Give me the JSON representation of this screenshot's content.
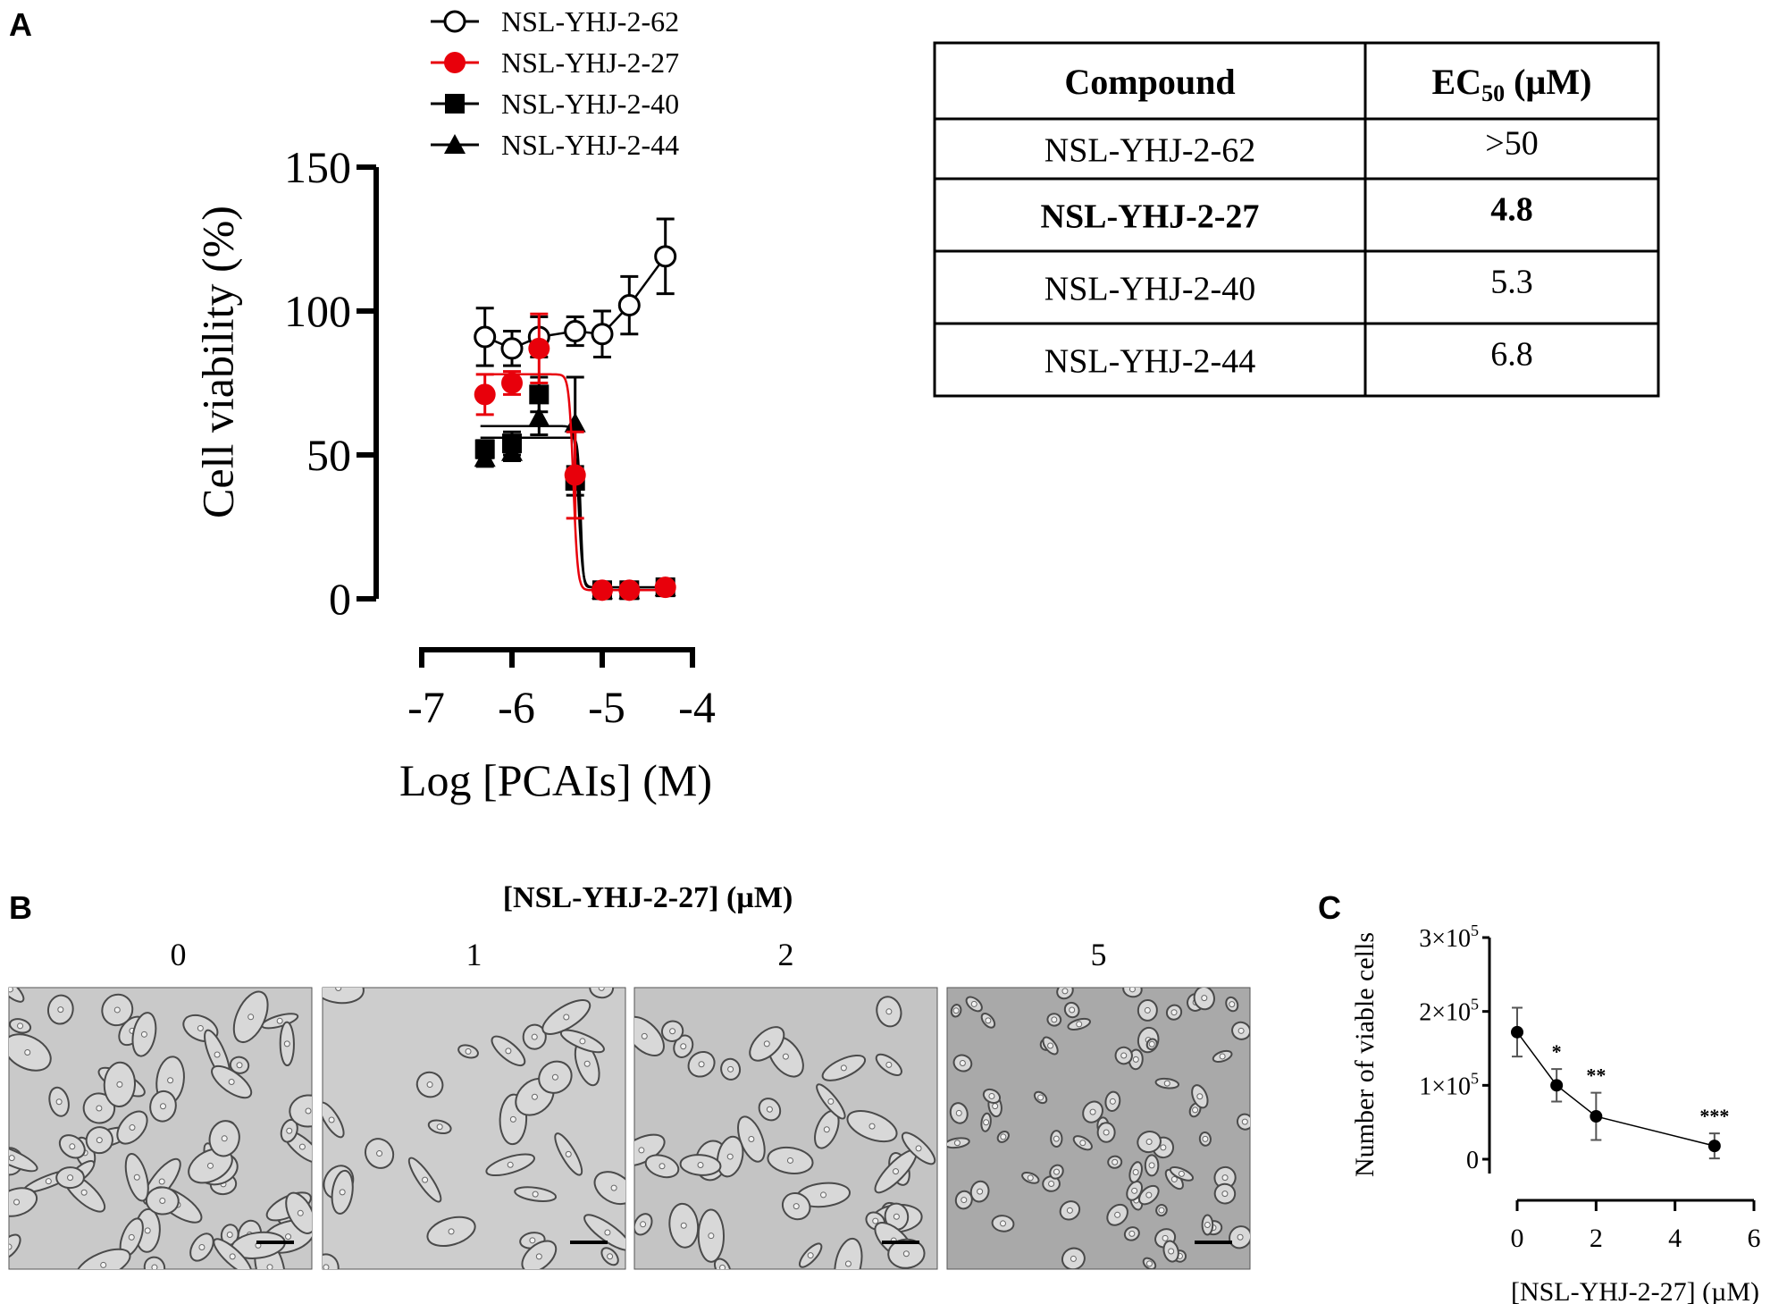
{
  "panel_labels": {
    "a": "A",
    "b": "B",
    "c": "C"
  },
  "chart_data": [
    {
      "type": "scatter",
      "panel": "A",
      "xlabel": "Log [PCAIs] (M)",
      "ylabel": "Cell viability (%)",
      "xlim": [
        -7,
        -4
      ],
      "ylim": [
        0,
        150
      ],
      "xticks": [
        "-7",
        "-6",
        "-5",
        "-4"
      ],
      "yticks": [
        "0",
        "50",
        "100",
        "150"
      ],
      "grid": false,
      "legend_position": "top",
      "x": [
        -6.3,
        -6.0,
        -5.7,
        -5.3,
        -5.0,
        -4.7,
        -4.3
      ],
      "series": [
        {
          "name": "NSL-YHJ-2-62",
          "marker": "open-circle",
          "color": "#000000",
          "values": [
            91,
            87,
            91,
            93,
            92,
            102,
            119
          ],
          "errors": [
            10,
            6,
            7,
            5,
            8,
            10,
            13
          ]
        },
        {
          "name": "NSL-YHJ-2-27",
          "marker": "filled-circle",
          "color": "#e8000b",
          "values": [
            71,
            75,
            87,
            43,
            3,
            3,
            4
          ],
          "errors": [
            7,
            4,
            12,
            15,
            1,
            1,
            1
          ]
        },
        {
          "name": "NSL-YHJ-2-40",
          "marker": "filled-square",
          "color": "#000000",
          "values": [
            52,
            54,
            71,
            41,
            3,
            3,
            4
          ],
          "errors": [
            3,
            4,
            6,
            5,
            1,
            1,
            1
          ]
        },
        {
          "name": "NSL-YHJ-2-44",
          "marker": "filled-triangle",
          "color": "#000000",
          "values": [
            49,
            51,
            63,
            61,
            3,
            3,
            4
          ],
          "errors": [
            3,
            3,
            6,
            16,
            1,
            1,
            1
          ]
        }
      ]
    },
    {
      "type": "line",
      "panel": "C",
      "xlabel": "[NSL-YHJ-2-27] (µM)",
      "ylabel": "Number of viable cells",
      "xlim": [
        0,
        6
      ],
      "ylim": [
        0,
        300000
      ],
      "xticks": [
        "0",
        "2",
        "4",
        "6"
      ],
      "yticks": [
        {
          "base": "0",
          "exp": ""
        },
        {
          "base": "1×10",
          "exp": "5"
        },
        {
          "base": "2×10",
          "exp": "5"
        },
        {
          "base": "3×10",
          "exp": "5"
        }
      ],
      "grid": false,
      "x": [
        0,
        1,
        2,
        5
      ],
      "values": [
        172000,
        100000,
        58000,
        18000
      ],
      "errors": [
        33000,
        22000,
        32000,
        17000
      ],
      "annotations": [
        "",
        "*",
        "**",
        "***"
      ]
    }
  ],
  "table": {
    "headers": {
      "compound": "Compound",
      "ec50_main": "EC",
      "ec50_sub": "50",
      "ec50_unit": " (µM)"
    },
    "rows": [
      {
        "compound": "NSL-YHJ-2-62",
        "ec50": ">50",
        "bold": false
      },
      {
        "compound": "NSL-YHJ-2-27",
        "ec50": "4.8",
        "bold": true
      },
      {
        "compound": "NSL-YHJ-2-40",
        "ec50": "5.3",
        "bold": false
      },
      {
        "compound": "NSL-YHJ-2-44",
        "ec50": "6.8",
        "bold": false
      }
    ]
  },
  "panel_b": {
    "title": "[NSL-YHJ-2-27] (µM)",
    "concentrations": [
      "0",
      "1",
      "2",
      "5"
    ]
  }
}
